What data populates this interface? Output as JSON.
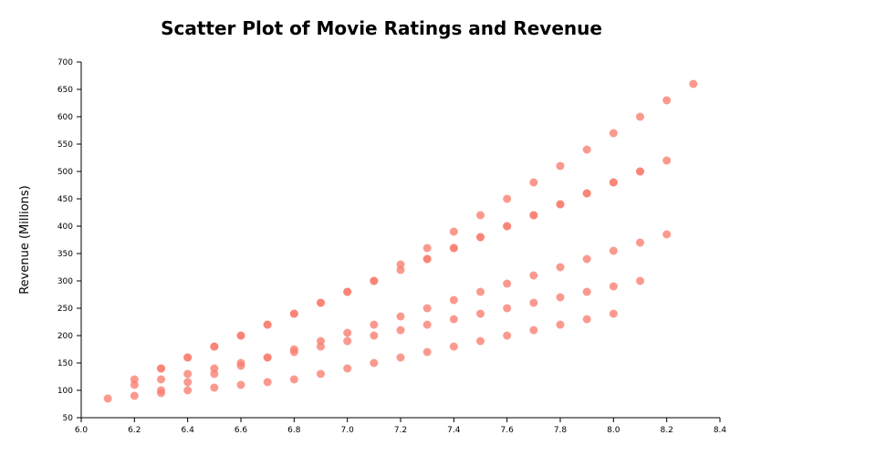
{
  "chart_data": {
    "type": "scatter",
    "title": "Scatter Plot of Movie Ratings and Revenue",
    "xlabel": "",
    "ylabel": "Revenue (Millions)",
    "xlim": [
      6.0,
      8.4
    ],
    "ylim": [
      50,
      700
    ],
    "xticks": [
      "6.0",
      "6.2",
      "6.4",
      "6.6",
      "6.8",
      "7.0",
      "7.2",
      "7.4",
      "7.6",
      "7.8",
      "8.0",
      "8.2",
      "8.4"
    ],
    "yticks": [
      "50",
      "100",
      "150",
      "200",
      "250",
      "300",
      "350",
      "400",
      "450",
      "500",
      "550",
      "600",
      "650",
      "700"
    ],
    "grid": false,
    "color": "#fa8072",
    "points": [
      [
        6.1,
        85
      ],
      [
        6.2,
        120
      ],
      [
        6.2,
        110
      ],
      [
        6.2,
        90
      ],
      [
        6.3,
        140
      ],
      [
        6.3,
        140
      ],
      [
        6.3,
        120
      ],
      [
        6.3,
        100
      ],
      [
        6.3,
        95
      ],
      [
        6.4,
        160
      ],
      [
        6.4,
        160
      ],
      [
        6.4,
        130
      ],
      [
        6.4,
        115
      ],
      [
        6.4,
        100
      ],
      [
        6.5,
        180
      ],
      [
        6.5,
        180
      ],
      [
        6.5,
        140
      ],
      [
        6.5,
        130
      ],
      [
        6.5,
        105
      ],
      [
        6.6,
        200
      ],
      [
        6.6,
        200
      ],
      [
        6.6,
        150
      ],
      [
        6.6,
        145
      ],
      [
        6.6,
        110
      ],
      [
        6.7,
        220
      ],
      [
        6.7,
        220
      ],
      [
        6.7,
        160
      ],
      [
        6.7,
        160
      ],
      [
        6.7,
        115
      ],
      [
        6.8,
        240
      ],
      [
        6.8,
        240
      ],
      [
        6.8,
        175
      ],
      [
        6.8,
        170
      ],
      [
        6.8,
        120
      ],
      [
        6.9,
        260
      ],
      [
        6.9,
        260
      ],
      [
        6.9,
        190
      ],
      [
        6.9,
        180
      ],
      [
        6.9,
        130
      ],
      [
        7.0,
        280
      ],
      [
        7.0,
        280
      ],
      [
        7.0,
        205
      ],
      [
        7.0,
        190
      ],
      [
        7.0,
        140
      ],
      [
        7.1,
        300
      ],
      [
        7.1,
        300
      ],
      [
        7.1,
        220
      ],
      [
        7.1,
        200
      ],
      [
        7.1,
        150
      ],
      [
        7.2,
        330
      ],
      [
        7.2,
        320
      ],
      [
        7.2,
        235
      ],
      [
        7.2,
        210
      ],
      [
        7.2,
        160
      ],
      [
        7.3,
        360
      ],
      [
        7.3,
        340
      ],
      [
        7.3,
        340
      ],
      [
        7.3,
        250
      ],
      [
        7.3,
        220
      ],
      [
        7.3,
        170
      ],
      [
        7.4,
        390
      ],
      [
        7.4,
        360
      ],
      [
        7.4,
        360
      ],
      [
        7.4,
        265
      ],
      [
        7.4,
        230
      ],
      [
        7.4,
        180
      ],
      [
        7.5,
        420
      ],
      [
        7.5,
        380
      ],
      [
        7.5,
        380
      ],
      [
        7.5,
        280
      ],
      [
        7.5,
        240
      ],
      [
        7.5,
        190
      ],
      [
        7.6,
        450
      ],
      [
        7.6,
        400
      ],
      [
        7.6,
        400
      ],
      [
        7.6,
        295
      ],
      [
        7.6,
        250
      ],
      [
        7.6,
        200
      ],
      [
        7.7,
        480
      ],
      [
        7.7,
        420
      ],
      [
        7.7,
        420
      ],
      [
        7.7,
        310
      ],
      [
        7.7,
        260
      ],
      [
        7.7,
        210
      ],
      [
        7.8,
        510
      ],
      [
        7.8,
        440
      ],
      [
        7.8,
        440
      ],
      [
        7.8,
        325
      ],
      [
        7.8,
        270
      ],
      [
        7.8,
        220
      ],
      [
        7.9,
        540
      ],
      [
        7.9,
        460
      ],
      [
        7.9,
        460
      ],
      [
        7.9,
        340
      ],
      [
        7.9,
        280
      ],
      [
        7.9,
        230
      ],
      [
        8.0,
        570
      ],
      [
        8.0,
        480
      ],
      [
        8.0,
        480
      ],
      [
        8.0,
        355
      ],
      [
        8.0,
        290
      ],
      [
        8.0,
        240
      ],
      [
        8.1,
        600
      ],
      [
        8.1,
        500
      ],
      [
        8.1,
        500
      ],
      [
        8.1,
        370
      ],
      [
        8.1,
        300
      ],
      [
        8.2,
        630
      ],
      [
        8.2,
        520
      ],
      [
        8.2,
        385
      ],
      [
        8.3,
        660
      ]
    ]
  }
}
